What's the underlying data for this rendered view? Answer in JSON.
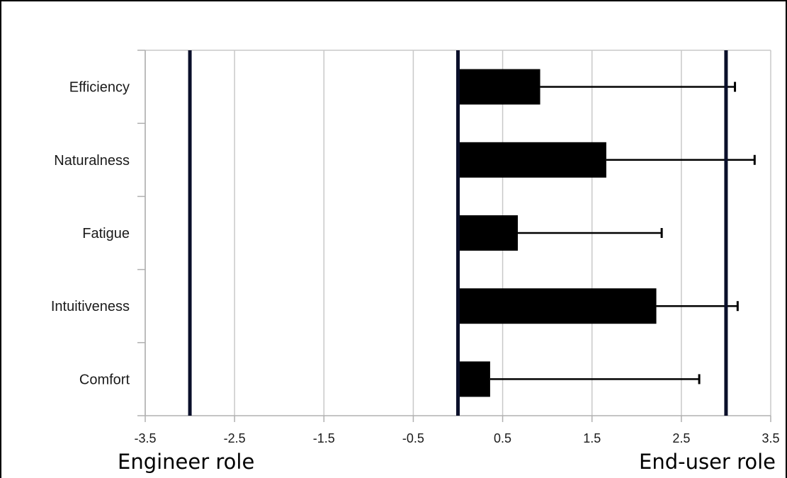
{
  "chart_data": {
    "type": "bar",
    "orientation": "horizontal",
    "categories": [
      "Efficiency",
      "Naturalness",
      "Fatigue",
      "Intuitiveness",
      "Comfort"
    ],
    "values": [
      0.92,
      1.66,
      0.67,
      2.22,
      0.36
    ],
    "error_upper": [
      3.1,
      3.32,
      2.28,
      3.13,
      2.7
    ],
    "xlim": [
      -3.5,
      3.5
    ],
    "xticks": [
      -3.5,
      -2.5,
      -1.5,
      -0.5,
      0.5,
      1.5,
      2.5,
      3.5
    ],
    "xtick_labels": [
      "-3.5",
      "-2.5",
      "-1.5",
      "-0.5",
      "0.5",
      "1.5",
      "2.5",
      "3.5"
    ],
    "reference_lines": [
      -3,
      0,
      3
    ],
    "grid": true,
    "colors": {
      "bar": "#000000",
      "reference_line": "#0a0f2a",
      "grid": "#c8c8c8"
    }
  },
  "role_labels": {
    "left": "Engineer role",
    "right": "End-user role"
  }
}
